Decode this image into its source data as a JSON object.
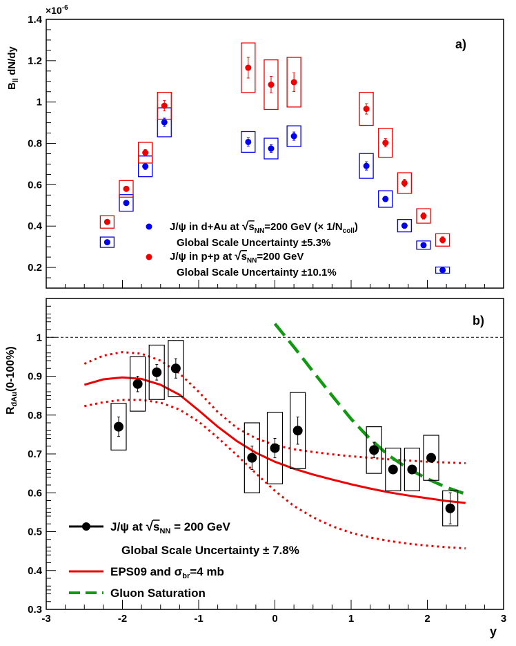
{
  "chart_data": [
    {
      "panel": "a",
      "type": "scatter",
      "panel_label": "a)",
      "ylabel_main": "B",
      "ylabel_sub": "ll",
      "ylabel_rest": " dN/dy",
      "y_multiplier_base": "×10",
      "y_multiplier_exp": "-6",
      "xlim": [
        -3,
        3
      ],
      "ylim": [
        0.1,
        1.4
      ],
      "yticks": [
        0.2,
        0.4,
        0.6,
        0.8,
        1,
        1.2,
        1.4
      ],
      "ytick_labels": [
        "0.2",
        "0.4",
        "0.6",
        "0.8",
        "1",
        "1.2",
        "1.4"
      ],
      "series": [
        {
          "name": "dAu",
          "color": "#0000ee",
          "x": [
            -2.2,
            -1.95,
            -1.7,
            -1.45,
            -0.35,
            -0.05,
            0.25,
            1.2,
            1.45,
            1.7,
            1.95,
            2.2
          ],
          "y": [
            0.322,
            0.512,
            0.689,
            0.902,
            0.807,
            0.775,
            0.835,
            0.691,
            0.531,
            0.402,
            0.308,
            0.187
          ],
          "stat_err": [
            0.01,
            0.012,
            0.015,
            0.02,
            0.02,
            0.018,
            0.02,
            0.02,
            0.012,
            0.012,
            0.01,
            0.008
          ],
          "sys_err": [
            0.025,
            0.04,
            0.05,
            0.07,
            0.05,
            0.05,
            0.05,
            0.06,
            0.04,
            0.03,
            0.02,
            0.015
          ]
        },
        {
          "name": "pp",
          "color": "#ee0000",
          "x": [
            -2.2,
            -1.95,
            -1.7,
            -1.45,
            -0.35,
            -0.05,
            0.25,
            1.2,
            1.45,
            1.7,
            1.95,
            2.2
          ],
          "y": [
            0.42,
            0.58,
            0.755,
            0.982,
            1.166,
            1.084,
            1.096,
            0.967,
            0.803,
            0.608,
            0.449,
            0.333
          ],
          "stat_err": [
            0.012,
            0.012,
            0.015,
            0.025,
            0.05,
            0.04,
            0.045,
            0.025,
            0.02,
            0.018,
            0.015,
            0.015
          ],
          "sys_err": [
            0.03,
            0.04,
            0.05,
            0.065,
            0.12,
            0.12,
            0.12,
            0.08,
            0.07,
            0.05,
            0.035,
            0.03
          ]
        }
      ],
      "legend": [
        {
          "marker_color": "#0000ee",
          "line1_a": "J/ψ in d+Au at ",
          "line1_s": "s",
          "line1_sub": "NN",
          "line1_b": "=200 GeV (",
          "line1_times": "× 1/N",
          "line1_sub2": "coll",
          "line1_c": ")",
          "line2": "Global Scale Uncertainty ±5.3%"
        },
        {
          "marker_color": "#ee0000",
          "line1_a": "J/ψ in p+p at ",
          "line1_s": "s",
          "line1_sub": "NN",
          "line1_b": "=200 GeV",
          "line2": "Global Scale Uncertainty ±10.1%"
        }
      ]
    },
    {
      "panel": "b",
      "type": "scatter",
      "panel_label": "b)",
      "ylabel_main": "R",
      "ylabel_sub": "dAu",
      "ylabel_rest": "(0-100%)",
      "xlabel": "y",
      "xlim": [
        -3,
        3
      ],
      "ylim": [
        0.3,
        1.1
      ],
      "xticks": [
        -3,
        -2,
        -1,
        0,
        1,
        2,
        3
      ],
      "xtick_labels": [
        "-3",
        "-2",
        "-1",
        "0",
        "1",
        "2",
        "3"
      ],
      "yticks": [
        0.3,
        0.4,
        0.5,
        0.6,
        0.7,
        0.8,
        0.9,
        1
      ],
      "ytick_labels": [
        "0.3",
        "0.4",
        "0.5",
        "0.6",
        "0.7",
        "0.8",
        "0.9",
        "1"
      ],
      "reference_line": 1,
      "data": {
        "name": "J/ψ at √sNN = 200 GeV",
        "color": "#000000",
        "x": [
          -2.05,
          -1.8,
          -1.55,
          -1.3,
          -0.3,
          0.0,
          0.3,
          1.3,
          1.55,
          1.8,
          2.05,
          2.3
        ],
        "y": [
          0.77,
          0.88,
          0.91,
          0.92,
          0.69,
          0.715,
          0.76,
          0.71,
          0.66,
          0.66,
          0.69,
          0.56
        ],
        "stat_err": [
          0.025,
          0.02,
          0.02,
          0.025,
          0.03,
          0.025,
          0.035,
          0.02,
          0.01,
          0.01,
          0.01,
          0.04
        ],
        "sys_err": [
          0.06,
          0.07,
          0.07,
          0.072,
          0.09,
          0.092,
          0.098,
          0.06,
          0.055,
          0.055,
          0.058,
          0.045
        ]
      },
      "curves": [
        {
          "name": "EPS09 central",
          "color": "#ee0000",
          "style": "solid",
          "x": [
            -2.5,
            -2.25,
            -2.0,
            -1.75,
            -1.5,
            -1.25,
            -1.0,
            -0.75,
            -0.5,
            -0.25,
            0.0,
            0.25,
            0.5,
            0.75,
            1.0,
            1.25,
            1.5,
            1.75,
            2.0,
            2.25,
            2.5
          ],
          "y": [
            0.878,
            0.892,
            0.897,
            0.893,
            0.878,
            0.852,
            0.812,
            0.77,
            0.733,
            0.703,
            0.68,
            0.662,
            0.647,
            0.634,
            0.622,
            0.611,
            0.601,
            0.593,
            0.586,
            0.579,
            0.574
          ]
        },
        {
          "name": "EPS09 upper",
          "color": "#ee0000",
          "style": "dotted",
          "x": [
            -2.5,
            -2.25,
            -2.0,
            -1.75,
            -1.5,
            -1.25,
            -1.0,
            -0.75,
            -0.5,
            -0.25,
            0.0,
            0.25,
            0.5,
            0.75,
            1.0,
            1.25,
            1.5,
            1.75,
            2.0,
            2.25,
            2.5
          ],
          "y": [
            0.932,
            0.953,
            0.962,
            0.958,
            0.94,
            0.907,
            0.86,
            0.808,
            0.767,
            0.74,
            0.723,
            0.712,
            0.705,
            0.699,
            0.694,
            0.69,
            0.686,
            0.683,
            0.68,
            0.678,
            0.676
          ]
        },
        {
          "name": "EPS09 lower",
          "color": "#ee0000",
          "style": "dotted",
          "x": [
            -2.5,
            -2.25,
            -2.0,
            -1.75,
            -1.5,
            -1.25,
            -1.0,
            -0.75,
            -0.5,
            -0.25,
            0.0,
            0.25,
            0.5,
            0.75,
            1.0,
            1.25,
            1.5,
            1.75,
            2.0,
            2.25,
            2.5
          ],
          "y": [
            0.823,
            0.833,
            0.839,
            0.839,
            0.832,
            0.814,
            0.783,
            0.742,
            0.697,
            0.65,
            0.605,
            0.566,
            0.537,
            0.514,
            0.497,
            0.485,
            0.476,
            0.469,
            0.464,
            0.46,
            0.457
          ]
        },
        {
          "name": "Gluon Saturation",
          "color": "#119911",
          "style": "dashed",
          "x": [
            0.0,
            0.25,
            0.5,
            0.75,
            1.0,
            1.25,
            1.5,
            1.75,
            2.0,
            2.25,
            2.5
          ],
          "y": [
            1.035,
            0.975,
            0.912,
            0.85,
            0.79,
            0.738,
            0.695,
            0.662,
            0.636,
            0.614,
            0.597
          ]
        }
      ],
      "legend": [
        {
          "kind": "data",
          "line1_a": "J/ψ at ",
          "line1_s": "s",
          "line1_sub": "NN",
          "line1_b": " = 200 GeV",
          "line2": "Global Scale Uncertainty ± 7.8%"
        },
        {
          "kind": "line",
          "color": "#ee0000",
          "label_a": "EPS09 and σ",
          "label_sub": "br",
          "label_b": "=4 mb"
        },
        {
          "kind": "dashed",
          "color": "#119911",
          "label_a": "Gluon Saturation"
        }
      ]
    }
  ]
}
